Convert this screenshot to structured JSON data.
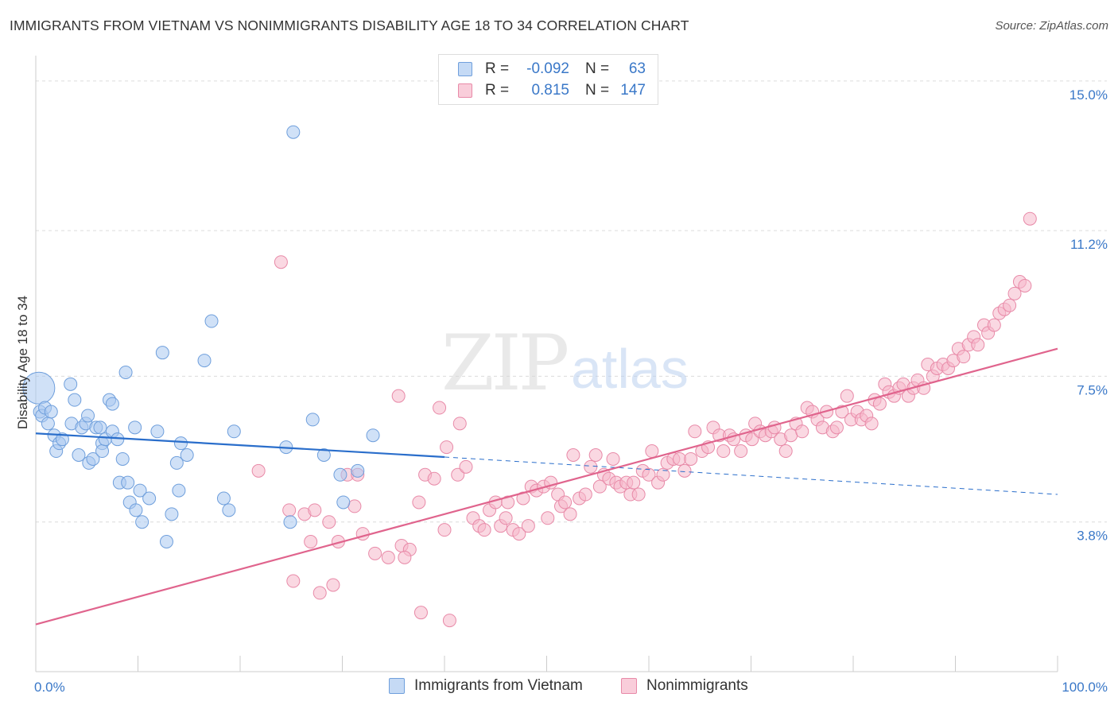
{
  "title": "IMMIGRANTS FROM VIETNAM VS NONIMMIGRANTS DISABILITY AGE 18 TO 34 CORRELATION CHART",
  "source": "Source: ZipAtlas.com",
  "watermark": {
    "zip": "ZIP",
    "atlas": "atlas"
  },
  "legend": {
    "rows": [
      {
        "r_label": "R =",
        "r_value": "-0.092",
        "n_label": "N =",
        "n_value": "63"
      },
      {
        "r_label": "R =",
        "r_value": "0.815",
        "n_label": "N =",
        "n_value": "147"
      }
    ]
  },
  "bottom_legend": [
    "Immigrants from Vietnam",
    "Nonimmigrants"
  ],
  "colors": {
    "blue_fill": "#a9c8f0",
    "blue_stroke": "#6f9fdc",
    "blue_line": "#2a6ecb",
    "pink_fill": "#f5b8cb",
    "pink_stroke": "#e88aa8",
    "pink_line": "#e0648d",
    "tick_label": "#3a78c8"
  },
  "chart_data": {
    "type": "scatter",
    "title": "IMMIGRANTS FROM VIETNAM VS NONIMMIGRANTS DISABILITY AGE 18 TO 34 CORRELATION CHART",
    "xlabel": "",
    "ylabel": "Disability Age 18 to 34",
    "xlim": [
      0,
      100
    ],
    "ylim": [
      0,
      15.4
    ],
    "x_tick_labels": [
      "0.0%",
      "100.0%"
    ],
    "y_ticks": [
      3.8,
      7.5,
      11.2,
      15.0
    ],
    "y_tick_labels": [
      "3.8%",
      "7.5%",
      "11.2%",
      "15.0%"
    ],
    "grid": true,
    "legend_position": "top-center",
    "series": [
      {
        "name": "Immigrants from Vietnam",
        "r": -0.092,
        "n": 63,
        "trend": {
          "x0": 0,
          "y0": 6.05,
          "x1": 40,
          "y1": 5.45,
          "dashed_to": 100,
          "y_end": 4.5
        },
        "points": [
          [
            0.3,
            7.2,
            "big"
          ],
          [
            0.4,
            6.6
          ],
          [
            0.6,
            6.5
          ],
          [
            0.9,
            6.7
          ],
          [
            1.2,
            6.3
          ],
          [
            1.5,
            6.6
          ],
          [
            1.8,
            6.0
          ],
          [
            2.0,
            5.6
          ],
          [
            2.3,
            5.8
          ],
          [
            2.6,
            5.9
          ],
          [
            3.4,
            7.3
          ],
          [
            3.5,
            6.3
          ],
          [
            3.8,
            6.9
          ],
          [
            4.2,
            5.5
          ],
          [
            4.5,
            6.2
          ],
          [
            4.9,
            6.3
          ],
          [
            5.1,
            6.5
          ],
          [
            5.2,
            5.3
          ],
          [
            5.6,
            5.4
          ],
          [
            5.9,
            6.2
          ],
          [
            6.3,
            6.2
          ],
          [
            6.5,
            5.8
          ],
          [
            6.5,
            5.6
          ],
          [
            6.8,
            5.9
          ],
          [
            7.2,
            6.9
          ],
          [
            7.5,
            6.1
          ],
          [
            7.5,
            6.8
          ],
          [
            8.0,
            5.9
          ],
          [
            8.2,
            4.8
          ],
          [
            8.5,
            5.4
          ],
          [
            8.8,
            7.6
          ],
          [
            9.0,
            4.8
          ],
          [
            9.2,
            4.3
          ],
          [
            9.7,
            6.2
          ],
          [
            9.8,
            4.1
          ],
          [
            10.2,
            4.6
          ],
          [
            10.4,
            3.8
          ],
          [
            11.1,
            4.4
          ],
          [
            11.9,
            6.1
          ],
          [
            12.4,
            8.1
          ],
          [
            12.8,
            3.3
          ],
          [
            13.3,
            4.0
          ],
          [
            13.8,
            5.3
          ],
          [
            14.0,
            4.6
          ],
          [
            14.2,
            5.8
          ],
          [
            14.8,
            5.5
          ],
          [
            16.5,
            7.9
          ],
          [
            17.2,
            8.9
          ],
          [
            18.4,
            4.4
          ],
          [
            18.9,
            4.1
          ],
          [
            19.4,
            6.1
          ],
          [
            24.5,
            5.7
          ],
          [
            24.9,
            3.8
          ],
          [
            25.2,
            13.7
          ],
          [
            27.1,
            6.4
          ],
          [
            28.2,
            5.5
          ],
          [
            29.8,
            5.0
          ],
          [
            30.1,
            4.3
          ],
          [
            31.5,
            5.1
          ],
          [
            33.0,
            6.0
          ]
        ]
      },
      {
        "name": "Nonimmigrants",
        "r": 0.815,
        "n": 147,
        "trend": {
          "x0": 0,
          "y0": 1.2,
          "x1": 100,
          "y1": 8.2
        },
        "points": [
          [
            21.8,
            5.1
          ],
          [
            24.0,
            10.4
          ],
          [
            24.8,
            4.1
          ],
          [
            25.2,
            2.3
          ],
          [
            26.3,
            4.0
          ],
          [
            26.9,
            3.3
          ],
          [
            27.3,
            4.1
          ],
          [
            27.8,
            2.0
          ],
          [
            29.1,
            2.2
          ],
          [
            28.7,
            3.8
          ],
          [
            29.6,
            3.3
          ],
          [
            30.5,
            5.0
          ],
          [
            31.2,
            4.2
          ],
          [
            31.5,
            5.0
          ],
          [
            32.0,
            3.5
          ],
          [
            33.2,
            3.0
          ],
          [
            34.5,
            2.9
          ],
          [
            35.8,
            3.2
          ],
          [
            36.6,
            3.1
          ],
          [
            35.5,
            7.0
          ],
          [
            36.1,
            2.9
          ],
          [
            37.5,
            4.3
          ],
          [
            37.7,
            1.5
          ],
          [
            38.1,
            5.0
          ],
          [
            39.0,
            4.9
          ],
          [
            39.5,
            6.7
          ],
          [
            40.0,
            3.6
          ],
          [
            40.5,
            1.3
          ],
          [
            40.2,
            5.7
          ],
          [
            41.5,
            6.3
          ],
          [
            41.3,
            5.0
          ],
          [
            42.1,
            5.2
          ],
          [
            42.8,
            3.9
          ],
          [
            43.4,
            3.7
          ],
          [
            43.9,
            3.6
          ],
          [
            44.4,
            4.1
          ],
          [
            45.0,
            4.3
          ],
          [
            45.5,
            3.7
          ],
          [
            46.0,
            3.9
          ],
          [
            46.2,
            4.3
          ],
          [
            46.7,
            3.6
          ],
          [
            47.3,
            3.5
          ],
          [
            47.7,
            4.4
          ],
          [
            48.2,
            3.7
          ],
          [
            48.5,
            4.7
          ],
          [
            49.0,
            4.6
          ],
          [
            49.7,
            4.7
          ],
          [
            50.1,
            3.9
          ],
          [
            50.4,
            4.8
          ],
          [
            51.1,
            4.5
          ],
          [
            51.4,
            4.2
          ],
          [
            51.8,
            4.3
          ],
          [
            52.3,
            4.0
          ],
          [
            52.6,
            5.5
          ],
          [
            53.2,
            4.4
          ],
          [
            53.8,
            4.5
          ],
          [
            54.3,
            5.2
          ],
          [
            54.8,
            5.5
          ],
          [
            55.2,
            4.7
          ],
          [
            55.6,
            5.0
          ],
          [
            56.1,
            4.9
          ],
          [
            56.5,
            5.4
          ],
          [
            56.8,
            4.8
          ],
          [
            57.2,
            4.7
          ],
          [
            57.8,
            4.8
          ],
          [
            58.2,
            4.5
          ],
          [
            58.5,
            4.8
          ],
          [
            59.0,
            4.5
          ],
          [
            59.4,
            5.1
          ],
          [
            60.0,
            5.0
          ],
          [
            60.3,
            5.6
          ],
          [
            60.9,
            4.8
          ],
          [
            61.4,
            5.0
          ],
          [
            61.8,
            5.3
          ],
          [
            62.4,
            5.4
          ],
          [
            63.0,
            5.4
          ],
          [
            63.5,
            5.1
          ],
          [
            64.1,
            5.4
          ],
          [
            64.5,
            6.1
          ],
          [
            65.2,
            5.6
          ],
          [
            65.8,
            5.7
          ],
          [
            66.3,
            6.2
          ],
          [
            66.9,
            6.0
          ],
          [
            67.3,
            5.6
          ],
          [
            67.9,
            6.0
          ],
          [
            68.3,
            5.9
          ],
          [
            69.0,
            5.6
          ],
          [
            69.5,
            6.0
          ],
          [
            70.1,
            5.9
          ],
          [
            70.4,
            6.3
          ],
          [
            70.9,
            6.1
          ],
          [
            71.4,
            6.0
          ],
          [
            72.0,
            6.1
          ],
          [
            72.3,
            6.2
          ],
          [
            72.9,
            5.9
          ],
          [
            73.4,
            5.6
          ],
          [
            73.9,
            6.0
          ],
          [
            74.4,
            6.3
          ],
          [
            75.0,
            6.1
          ],
          [
            75.5,
            6.7
          ],
          [
            76.0,
            6.6
          ],
          [
            76.5,
            6.4
          ],
          [
            77.0,
            6.2
          ],
          [
            77.4,
            6.6
          ],
          [
            78.0,
            6.1
          ],
          [
            78.4,
            6.2
          ],
          [
            78.9,
            6.6
          ],
          [
            79.4,
            7.0
          ],
          [
            79.8,
            6.4
          ],
          [
            80.4,
            6.6
          ],
          [
            80.8,
            6.4
          ],
          [
            81.3,
            6.5
          ],
          [
            81.8,
            6.3
          ],
          [
            82.1,
            6.9
          ],
          [
            82.6,
            6.8
          ],
          [
            83.1,
            7.3
          ],
          [
            83.5,
            7.1
          ],
          [
            84.0,
            7.0
          ],
          [
            84.5,
            7.2
          ],
          [
            84.9,
            7.3
          ],
          [
            85.4,
            7.0
          ],
          [
            85.9,
            7.2
          ],
          [
            86.3,
            7.4
          ],
          [
            86.9,
            7.2
          ],
          [
            87.3,
            7.8
          ],
          [
            87.8,
            7.5
          ],
          [
            88.2,
            7.7
          ],
          [
            88.8,
            7.8
          ],
          [
            89.3,
            7.7
          ],
          [
            89.8,
            7.9
          ],
          [
            90.3,
            8.2
          ],
          [
            90.8,
            8.0
          ],
          [
            91.3,
            8.3
          ],
          [
            91.8,
            8.5
          ],
          [
            92.2,
            8.3
          ],
          [
            92.8,
            8.8
          ],
          [
            93.2,
            8.6
          ],
          [
            93.8,
            8.8
          ],
          [
            94.3,
            9.1
          ],
          [
            94.8,
            9.2
          ],
          [
            95.3,
            9.3
          ],
          [
            95.8,
            9.6
          ],
          [
            96.3,
            9.9
          ],
          [
            96.8,
            9.8
          ],
          [
            97.3,
            11.5
          ]
        ]
      }
    ]
  }
}
